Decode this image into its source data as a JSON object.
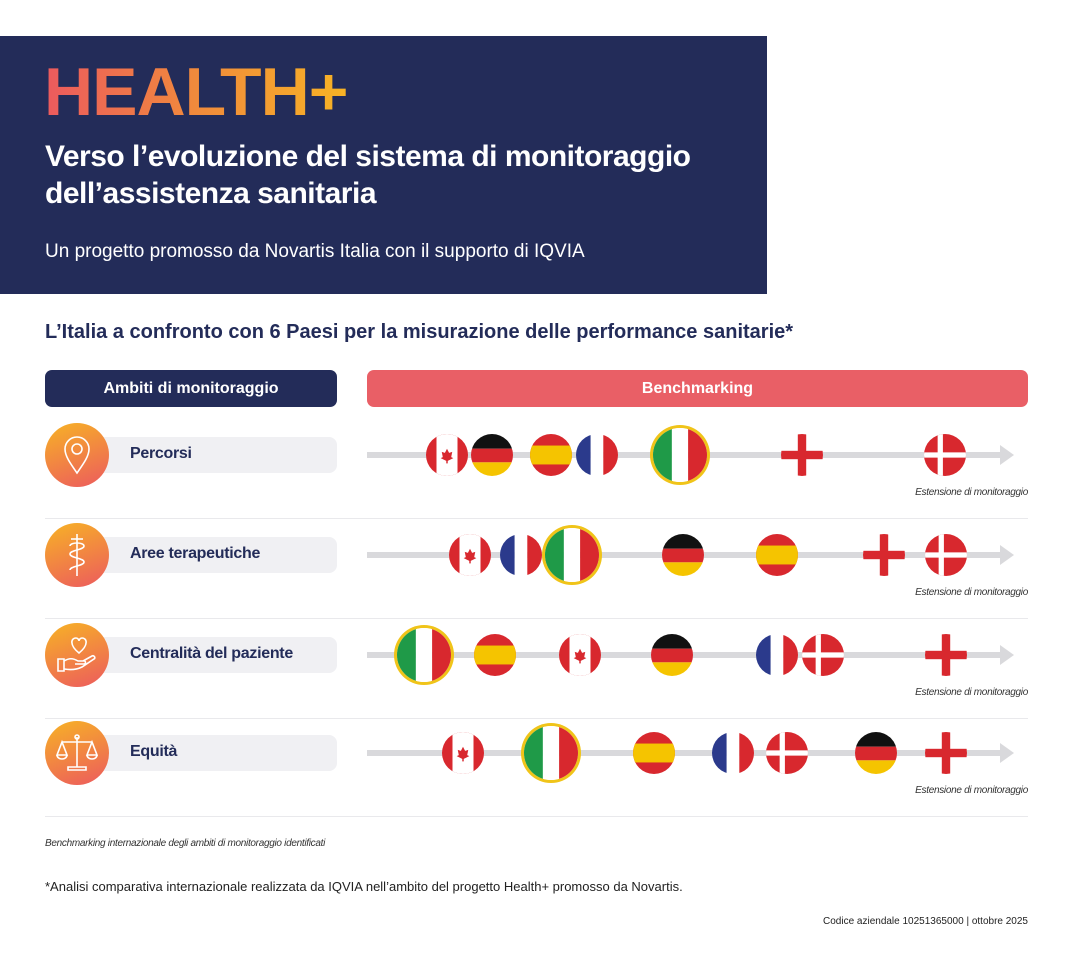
{
  "header": {
    "brand": "HEALTH+",
    "title": "Verso l’evoluzione del sistema di monitoraggio dell’assistenza sanitaria",
    "subtitle": "Un progetto promosso da Novartis Italia con il supporto di IQVIA"
  },
  "section_title": "L’Italia a confronto con 6 Paesi per la misurazione delle performance sanitarie*",
  "columns": {
    "left": "Ambiti di monitoraggio",
    "right": "Benchmarking"
  },
  "axis_label": "Estensione di monitoraggio",
  "colors": {
    "navy": "#232c59",
    "coral": "#e95f66",
    "orange": "#f7b325",
    "italy_highlight": "#f0c419"
  },
  "rows": [
    {
      "label": "Percorsi",
      "icon": "location-pin-icon",
      "flags_order": [
        "canada",
        "germany",
        "spain",
        "france",
        "italy",
        "england",
        "denmark"
      ]
    },
    {
      "label": "Aree terapeutiche",
      "icon": "caduceus-icon",
      "flags_order": [
        "canada",
        "france",
        "italy",
        "germany",
        "spain",
        "england",
        "denmark"
      ]
    },
    {
      "label": "Centralità del paziente",
      "icon": "heart-hand-icon",
      "flags_order": [
        "italy",
        "spain",
        "canada",
        "germany",
        "france",
        "denmark",
        "england"
      ]
    },
    {
      "label": "Equità",
      "icon": "scales-icon",
      "flags_order": [
        "canada",
        "italy",
        "spain",
        "france",
        "denmark",
        "germany",
        "england"
      ]
    }
  ],
  "footnotes": {
    "caption": "Benchmarking internazionale degli ambiti di monitoraggio identificati",
    "asterisk": "*Analisi comparativa internazionale realizzata da IQVIA nell’ambito del progetto Health+ promosso da Novartis.",
    "code": "Codice aziendale 10251365000 | ottobre 2025"
  }
}
